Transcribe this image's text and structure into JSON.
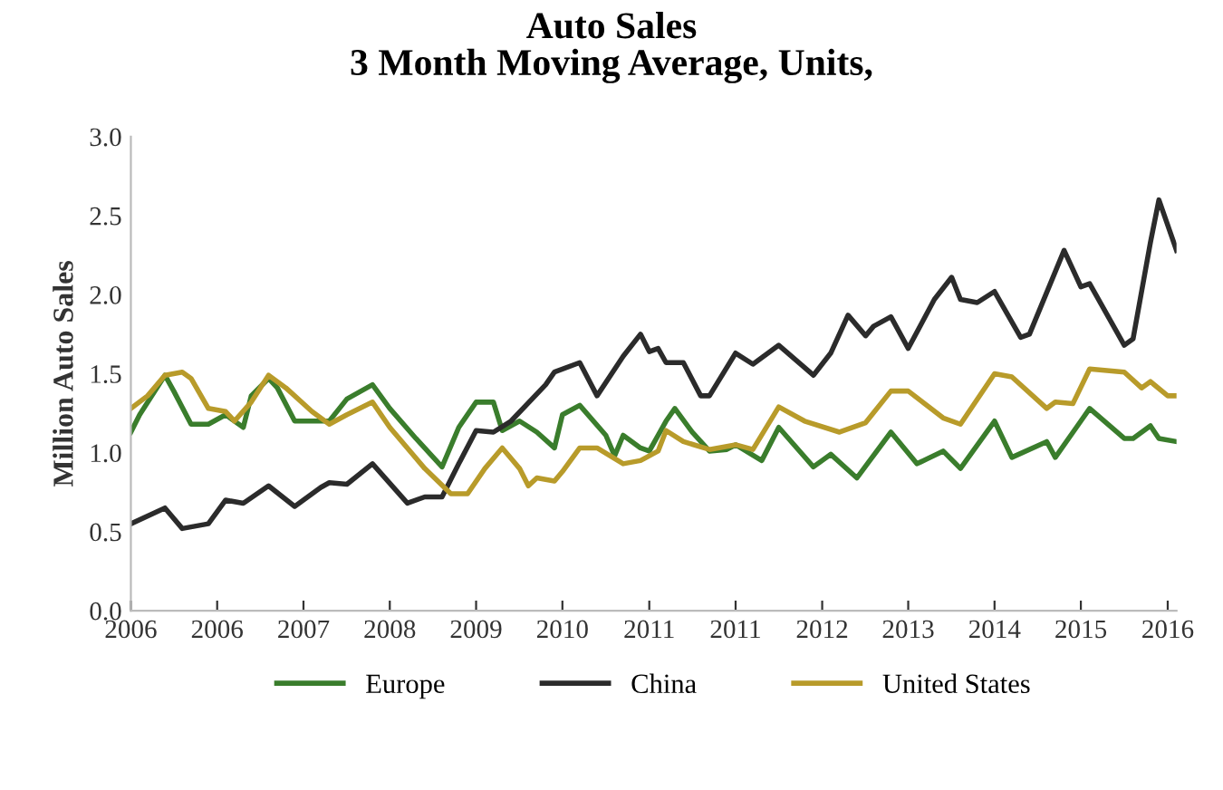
{
  "chart_data": {
    "type": "line",
    "title": "Auto Sales\n3 Month Moving Average, Units,",
    "ylabel": "Million Auto Sales",
    "xlim": [
      "2006-01",
      "2016-02"
    ],
    "xticks": [
      {
        "value": "2006-01",
        "label": "2006"
      },
      {
        "value": "2006-11",
        "label": "2006"
      },
      {
        "value": "2007-09",
        "label": "2007"
      },
      {
        "value": "2008-07",
        "label": "2008"
      },
      {
        "value": "2009-05",
        "label": "2009"
      },
      {
        "value": "2010-03",
        "label": "2010"
      },
      {
        "value": "2011-01",
        "label": "2011"
      },
      {
        "value": "2011-11",
        "label": "2011"
      },
      {
        "value": "2012-09",
        "label": "2012"
      },
      {
        "value": "2013-07",
        "label": "2013"
      },
      {
        "value": "2014-05",
        "label": "2014"
      },
      {
        "value": "2015-03",
        "label": "2015"
      },
      {
        "value": "2016-01",
        "label": "2016"
      }
    ],
    "ylim": [
      0,
      3
    ],
    "yticks": [
      {
        "value": 0,
        "label": "0.0"
      },
      {
        "value": 0.5,
        "label": "0.5"
      },
      {
        "value": 1,
        "label": "1.0"
      },
      {
        "value": 1.5,
        "label": "1.5"
      },
      {
        "value": 2,
        "label": "2.0"
      },
      {
        "value": 2.5,
        "label": "2.5"
      },
      {
        "value": 3,
        "label": "3.0"
      }
    ],
    "legend": "bottom",
    "marker": "none",
    "line_style": "solid",
    "series": [
      {
        "name": "Europe",
        "color": "#3a7d2c",
        "x": [
          "2006-01",
          "2006-02",
          "2006-05",
          "2006-06",
          "2006-08",
          "2006-10",
          "2006-12",
          "2007-02",
          "2007-03",
          "2007-05",
          "2007-06",
          "2007-08",
          "2007-10",
          "2007-12",
          "2008-02",
          "2008-05",
          "2008-07",
          "2008-10",
          "2009-01",
          "2009-03",
          "2009-05",
          "2009-07",
          "2009-08",
          "2009-10",
          "2009-12",
          "2010-02",
          "2010-03",
          "2010-05",
          "2010-08",
          "2010-09",
          "2010-10",
          "2010-12",
          "2011-01",
          "2011-03",
          "2011-04",
          "2011-06",
          "2011-08",
          "2011-10",
          "2011-11",
          "2012-02",
          "2012-04",
          "2012-08",
          "2012-10",
          "2013-01",
          "2013-05",
          "2013-08",
          "2013-11",
          "2014-01",
          "2014-05",
          "2014-07",
          "2014-11",
          "2014-12",
          "2015-03",
          "2015-04",
          "2015-08",
          "2015-09",
          "2015-11",
          "2015-12",
          "2016-02"
        ],
        "values": [
          1.13,
          1.24,
          1.49,
          1.39,
          1.18,
          1.18,
          1.24,
          1.16,
          1.36,
          1.47,
          1.41,
          1.2,
          1.2,
          1.2,
          1.34,
          1.43,
          1.28,
          1.09,
          0.91,
          1.16,
          1.32,
          1.32,
          1.14,
          1.2,
          1.13,
          1.03,
          1.24,
          1.3,
          1.11,
          0.98,
          1.11,
          1.03,
          1.01,
          1.2,
          1.28,
          1.13,
          1.01,
          1.02,
          1.05,
          0.95,
          1.16,
          0.91,
          0.99,
          0.84,
          1.13,
          0.93,
          1.01,
          0.9,
          1.2,
          0.97,
          1.07,
          0.97,
          1.2,
          1.28,
          1.09,
          1.09,
          1.17,
          1.09,
          1.07
        ]
      },
      {
        "name": "China",
        "color": "#2b2b2b",
        "x": [
          "2006-01",
          "2006-05",
          "2006-07",
          "2006-10",
          "2006-12",
          "2007-02",
          "2007-05",
          "2007-08",
          "2007-11",
          "2007-12",
          "2008-02",
          "2008-05",
          "2008-09",
          "2008-11",
          "2009-01",
          "2009-03",
          "2009-05",
          "2009-07",
          "2009-09",
          "2010-01",
          "2010-02",
          "2010-05",
          "2010-07",
          "2010-10",
          "2010-12",
          "2011-01",
          "2011-02",
          "2011-03",
          "2011-05",
          "2011-07",
          "2011-08",
          "2011-11",
          "2012-01",
          "2012-04",
          "2012-08",
          "2012-10",
          "2012-12",
          "2013-02",
          "2013-03",
          "2013-05",
          "2013-07",
          "2013-10",
          "2013-12",
          "2014-01",
          "2014-03",
          "2014-05",
          "2014-08",
          "2014-09",
          "2015-01",
          "2015-03",
          "2015-04",
          "2015-08",
          "2015-09",
          "2015-11",
          "2015-12",
          "2016-02"
        ],
        "values": [
          0.55,
          0.65,
          0.52,
          0.55,
          0.7,
          0.68,
          0.79,
          0.66,
          0.78,
          0.81,
          0.8,
          0.93,
          0.68,
          0.72,
          0.72,
          0.93,
          1.14,
          1.13,
          1.2,
          1.43,
          1.51,
          1.57,
          1.36,
          1.61,
          1.75,
          1.64,
          1.66,
          1.57,
          1.57,
          1.36,
          1.36,
          1.63,
          1.56,
          1.68,
          1.49,
          1.63,
          1.87,
          1.74,
          1.8,
          1.86,
          1.66,
          1.97,
          2.11,
          1.97,
          1.95,
          2.02,
          1.73,
          1.75,
          2.28,
          2.05,
          2.07,
          1.68,
          1.72,
          2.33,
          2.6,
          2.28
        ]
      },
      {
        "name": "United States",
        "color": "#b89b2a",
        "x": [
          "2006-01",
          "2006-03",
          "2006-05",
          "2006-07",
          "2006-08",
          "2006-10",
          "2006-12",
          "2007-01",
          "2007-03",
          "2007-05",
          "2007-07",
          "2007-10",
          "2007-12",
          "2008-02",
          "2008-05",
          "2008-07",
          "2008-11",
          "2009-02",
          "2009-04",
          "2009-06",
          "2009-08",
          "2009-10",
          "2009-11",
          "2009-12",
          "2010-02",
          "2010-03",
          "2010-05",
          "2010-07",
          "2010-10",
          "2010-12",
          "2011-02",
          "2011-03",
          "2011-05",
          "2011-08",
          "2011-11",
          "2012-01",
          "2012-04",
          "2012-07",
          "2012-11",
          "2013-02",
          "2013-05",
          "2013-07",
          "2013-11",
          "2014-01",
          "2014-05",
          "2014-07",
          "2014-11",
          "2014-12",
          "2015-02",
          "2015-04",
          "2015-08",
          "2015-10",
          "2015-11",
          "2016-01",
          "2016-02"
        ],
        "values": [
          1.28,
          1.36,
          1.49,
          1.51,
          1.47,
          1.28,
          1.26,
          1.2,
          1.32,
          1.49,
          1.41,
          1.26,
          1.18,
          1.24,
          1.32,
          1.16,
          0.9,
          0.74,
          0.74,
          0.9,
          1.03,
          0.9,
          0.79,
          0.84,
          0.82,
          0.88,
          1.03,
          1.03,
          0.93,
          0.95,
          1.01,
          1.14,
          1.07,
          1.02,
          1.05,
          1.02,
          1.29,
          1.2,
          1.13,
          1.19,
          1.39,
          1.39,
          1.22,
          1.18,
          1.5,
          1.48,
          1.28,
          1.32,
          1.31,
          1.53,
          1.51,
          1.41,
          1.45,
          1.36,
          1.36
        ]
      }
    ]
  }
}
